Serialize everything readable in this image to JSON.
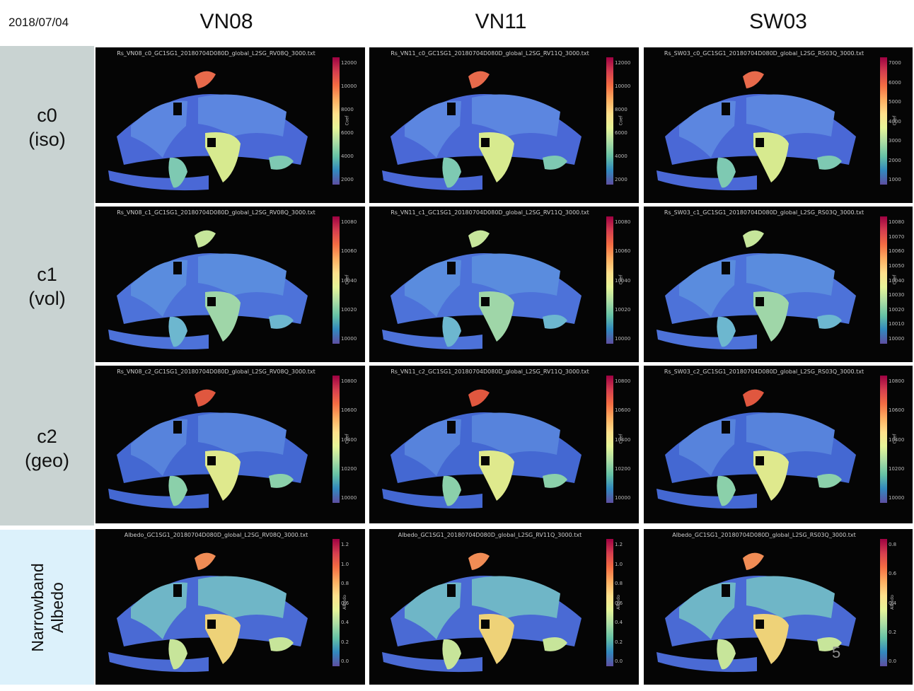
{
  "date": "2018/07/04",
  "columns": [
    "VN08",
    "VN11",
    "SW03"
  ],
  "rows": [
    {
      "line1": "c0",
      "line2": "(iso)"
    },
    {
      "line1": "c1",
      "line2": "(vol)"
    },
    {
      "line1": "c2",
      "line2": "(geo)"
    }
  ],
  "albedo_row": {
    "line1": "Narrowband",
    "line2": "Albedo"
  },
  "page_number": "5",
  "panels": [
    {
      "title": "Rs_VN08_c0_GC1SG1_20180704D080D_global_L2SG_RV08Q_3000.txt",
      "cbar_label": "Coef",
      "ticks": [
        "12000",
        "10000",
        "8000",
        "6000",
        "4000",
        "2000"
      ]
    },
    {
      "title": "Rs_VN11_c0_GC1SG1_20180704D080D_global_L2SG_RV11Q_3000.txt",
      "cbar_label": "Coef",
      "ticks": [
        "12000",
        "10000",
        "8000",
        "6000",
        "4000",
        "2000"
      ]
    },
    {
      "title": "Rs_SW03_c0_GC1SG1_20180704D080D_global_L2SG_RS03Q_3000.txt",
      "cbar_label": "Coef",
      "ticks": [
        "7000",
        "6000",
        "5000",
        "4000",
        "3000",
        "2000",
        "1000"
      ]
    },
    {
      "title": "Rs_VN08_c1_GC1SG1_20180704D080D_global_L2SG_RV08Q_3000.txt",
      "cbar_label": "Coef",
      "ticks": [
        "10080",
        "10060",
        "10040",
        "10020",
        "10000"
      ]
    },
    {
      "title": "Rs_VN11_c1_GC1SG1_20180704D080D_global_L2SG_RV11Q_3000.txt",
      "cbar_label": "Coef",
      "ticks": [
        "10080",
        "10060",
        "10040",
        "10020",
        "10000"
      ]
    },
    {
      "title": "Rs_SW03_c1_GC1SG1_20180704D080D_global_L2SG_RS03Q_3000.txt",
      "cbar_label": "Coef",
      "ticks": [
        "10080",
        "10070",
        "10060",
        "10050",
        "10040",
        "10030",
        "10020",
        "10010",
        "10000"
      ]
    },
    {
      "title": "Rs_VN08_c2_GC1SG1_20180704D080D_global_L2SG_RV08Q_3000.txt",
      "cbar_label": "Coef",
      "ticks": [
        "10800",
        "10600",
        "10400",
        "10200",
        "10000"
      ]
    },
    {
      "title": "Rs_VN11_c2_GC1SG1_20180704D080D_global_L2SG_RV11Q_3000.txt",
      "cbar_label": "Coef",
      "ticks": [
        "10800",
        "10600",
        "10400",
        "10200",
        "10000"
      ]
    },
    {
      "title": "Rs_SW03_c2_GC1SG1_20180704D080D_global_L2SG_RS03Q_3000.txt",
      "cbar_label": "Coef",
      "ticks": [
        "10800",
        "10600",
        "10400",
        "10200",
        "10000"
      ]
    },
    {
      "title": "Albedo_GC1SG1_20180704D080D_global_L2SG_RV08Q_3000.txt",
      "cbar_label": "Albedo",
      "ticks": [
        "1.2",
        "1.0",
        "0.8",
        "0.6",
        "0.4",
        "0.2",
        "0.0"
      ]
    },
    {
      "title": "Albedo_GC1SG1_20180704D080D_global_L2SG_RV11Q_3000.txt",
      "cbar_label": "Albedo",
      "ticks": [
        "1.2",
        "1.0",
        "0.8",
        "0.6",
        "0.4",
        "0.2",
        "0.0"
      ]
    },
    {
      "title": "Albedo_GC1SG1_20180704D080D_global_L2SG_RS03Q_3000.txt",
      "cbar_label": "Albedo",
      "ticks": [
        "0.8",
        "0.6",
        "0.4",
        "0.2",
        "0.0"
      ]
    }
  ]
}
